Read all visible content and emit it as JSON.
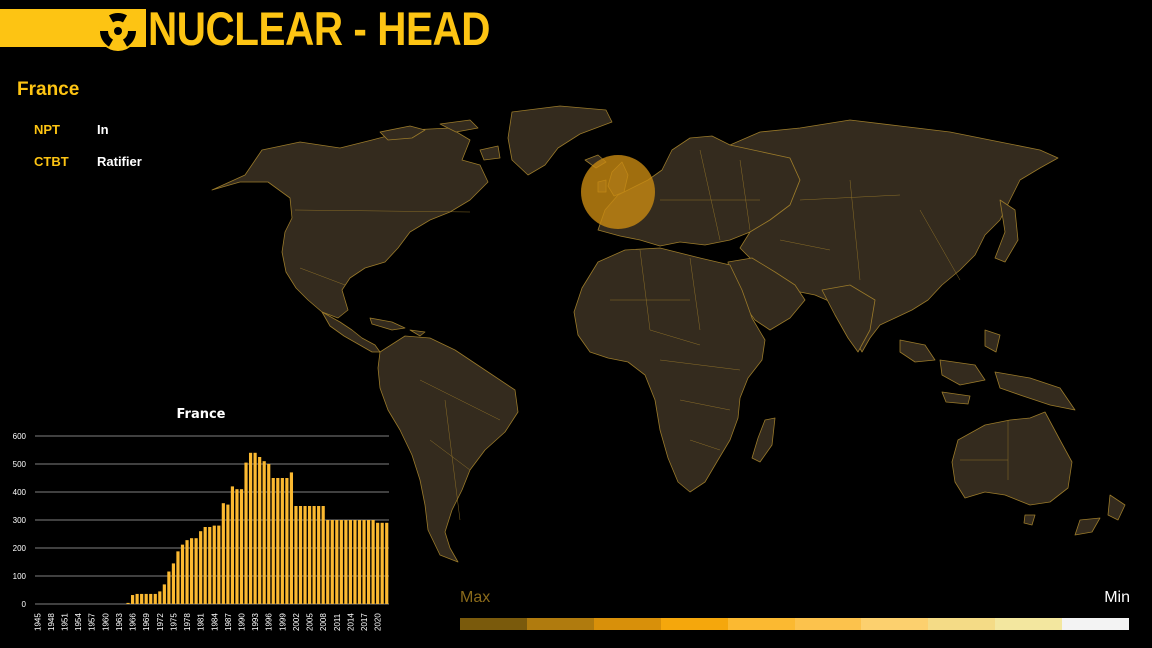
{
  "header": {
    "title": "NUCLEAR - HEAD",
    "icon": "radiation-icon",
    "accent": "#fdc413"
  },
  "country_panel": {
    "country": "France",
    "rows": [
      {
        "label": "NPT",
        "value": "In"
      },
      {
        "label": "CTBT",
        "value": "Ratifier"
      }
    ]
  },
  "map": {
    "highlight": "France",
    "highlight_color": "#c88a12"
  },
  "legend": {
    "max_label": "Max",
    "min_label": "Min",
    "colors": [
      "#7a5a0c",
      "#b07b0e",
      "#d8900a",
      "#f5a70c",
      "#fbb931",
      "#fcc24c",
      "#fcd06e",
      "#f4db86",
      "#f3e79f",
      "#f3f3f3"
    ]
  },
  "chart_data": {
    "type": "bar",
    "title": "France",
    "xlabel": "",
    "ylabel": "",
    "ylim": [
      0,
      600
    ],
    "yticks": [
      0,
      100,
      200,
      300,
      400,
      500,
      600
    ],
    "tick_labels": [
      "1945",
      "1948",
      "1951",
      "1954",
      "1957",
      "1960",
      "1963",
      "1966",
      "1969",
      "1972",
      "1975",
      "1978",
      "1981",
      "1984",
      "1987",
      "1990",
      "1993",
      "1996",
      "1999",
      "2002",
      "2005",
      "2008",
      "2011",
      "2014",
      "2017",
      "2020"
    ],
    "categories": [
      1945,
      1946,
      1947,
      1948,
      1949,
      1950,
      1951,
      1952,
      1953,
      1954,
      1955,
      1956,
      1957,
      1958,
      1959,
      1960,
      1961,
      1962,
      1963,
      1964,
      1965,
      1966,
      1967,
      1968,
      1969,
      1970,
      1971,
      1972,
      1973,
      1974,
      1975,
      1976,
      1977,
      1978,
      1979,
      1980,
      1981,
      1982,
      1983,
      1984,
      1985,
      1986,
      1987,
      1988,
      1989,
      1990,
      1991,
      1992,
      1993,
      1994,
      1995,
      1996,
      1997,
      1998,
      1999,
      2000,
      2001,
      2002,
      2003,
      2004,
      2005,
      2006,
      2007,
      2008,
      2009,
      2010,
      2011,
      2012,
      2013,
      2014,
      2015,
      2016,
      2017,
      2018,
      2019,
      2020,
      2021,
      2022
    ],
    "values": [
      0,
      0,
      0,
      0,
      0,
      0,
      0,
      0,
      0,
      0,
      0,
      0,
      0,
      0,
      0,
      0,
      0,
      0,
      0,
      0,
      4,
      32,
      36,
      36,
      36,
      36,
      36,
      45,
      70,
      116,
      145,
      188,
      212,
      228,
      235,
      235,
      260,
      275,
      275,
      280,
      280,
      360,
      355,
      420,
      410,
      410,
      505,
      540,
      540,
      525,
      510,
      500,
      450,
      450,
      450,
      450,
      470,
      350,
      350,
      350,
      350,
      350,
      350,
      350,
      300,
      300,
      300,
      300,
      300,
      300,
      300,
      300,
      300,
      300,
      300,
      290,
      290,
      290
    ],
    "bar_color": "#fbb931",
    "grid": true
  }
}
